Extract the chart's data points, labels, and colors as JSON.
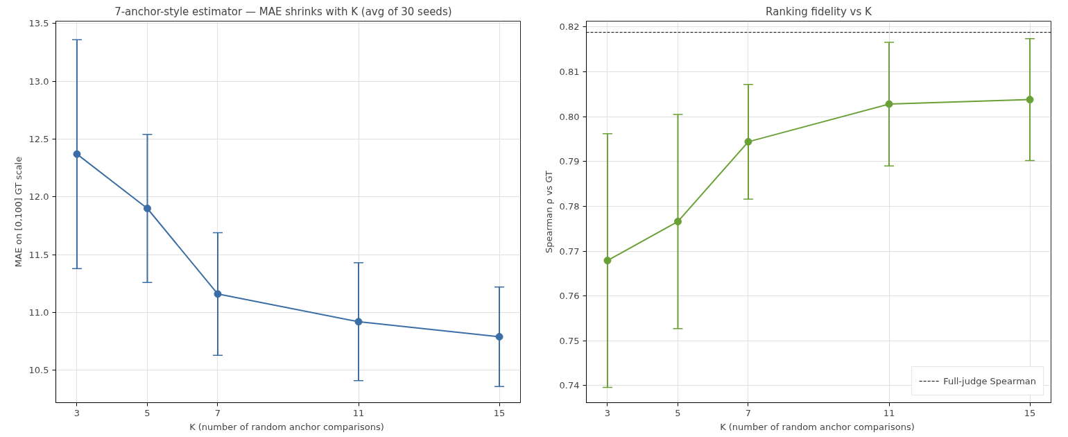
{
  "chart_data": [
    {
      "type": "line",
      "title": "7-anchor-style estimator  —  MAE shrinks with K  (avg of 30 seeds)",
      "xlabel": "K  (number of random anchor comparisons)",
      "ylabel": "MAE on [0,100] GT scale",
      "x": [
        3,
        5,
        7,
        11,
        15
      ],
      "xlim": [
        2.4,
        15.6
      ],
      "xticks": [
        3,
        5,
        7,
        11,
        15
      ],
      "ylim": [
        10.22,
        13.52
      ],
      "yticks": [
        10.5,
        {
          "value": 11,
          "label": "11.0"
        },
        11.5,
        {
          "value": 12,
          "label": "12.0"
        },
        12.5,
        {
          "value": 13,
          "label": "13.0"
        },
        13.5
      ],
      "grid": true,
      "marker": "circle",
      "line_style": "solid",
      "series": [
        {
          "color": "#3a6ea5",
          "values": [
            12.37,
            11.9,
            11.16,
            10.92,
            10.79
          ],
          "errors": [
            0.99,
            0.64,
            0.53,
            0.51,
            0.43
          ]
        }
      ]
    },
    {
      "type": "line",
      "title": "Ranking fidelity vs K",
      "xlabel": "K  (number of random anchor comparisons)",
      "ylabel": "Spearman ρ vs GT",
      "x": [
        3,
        5,
        7,
        11,
        15
      ],
      "xlim": [
        2.4,
        15.6
      ],
      "xticks": [
        3,
        5,
        7,
        11,
        15
      ],
      "ylim": [
        0.7362,
        0.8213
      ],
      "yticks": [
        0.74,
        0.75,
        0.76,
        0.77,
        0.78,
        0.79,
        {
          "value": 0.8,
          "label": "0.80"
        },
        0.81,
        0.82
      ],
      "grid": true,
      "marker": "circle",
      "line_style": "solid",
      "legend": "bottom right",
      "series": [
        {
          "color": "#6aa136",
          "values": [
            0.7679,
            0.7766,
            0.7944,
            0.8028,
            0.8038
          ],
          "errors": [
            0.0283,
            0.0239,
            0.0128,
            0.0138,
            0.0136
          ]
        }
      ],
      "ref_lines": [
        {
          "axis": "y",
          "value": 0.8188,
          "label": "Full-judge Spearman",
          "color": "#000000",
          "line_style": "dashed"
        }
      ]
    }
  ]
}
